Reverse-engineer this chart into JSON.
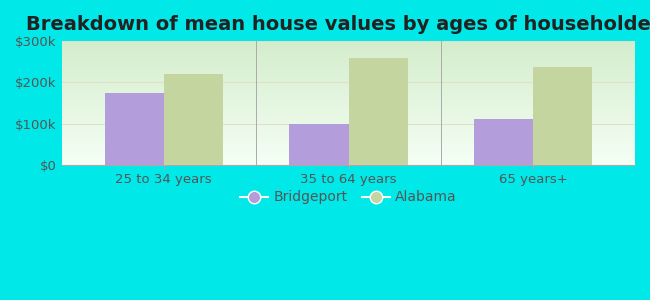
{
  "title": "Breakdown of mean house values by ages of householders",
  "categories": [
    "25 to 34 years",
    "35 to 64 years",
    "65 years+"
  ],
  "series": {
    "Bridgeport": [
      175000,
      100000,
      112000
    ],
    "Alabama": [
      220000,
      258000,
      238000
    ]
  },
  "bar_colors": {
    "Bridgeport": "#b39ddb",
    "Alabama": "#c5d5a0"
  },
  "ylim": [
    0,
    300000
  ],
  "yticks": [
    0,
    100000,
    200000,
    300000
  ],
  "ytick_labels": [
    "$0",
    "$100k",
    "$200k",
    "$300k"
  ],
  "title_fontsize": 14,
  "axis_fontsize": 9.5,
  "legend_fontsize": 10,
  "bar_width": 0.32,
  "outer_bg": "#00e8e8",
  "plot_bg_top": "#c8e6c0",
  "plot_bg_bottom": "#f0fff0"
}
